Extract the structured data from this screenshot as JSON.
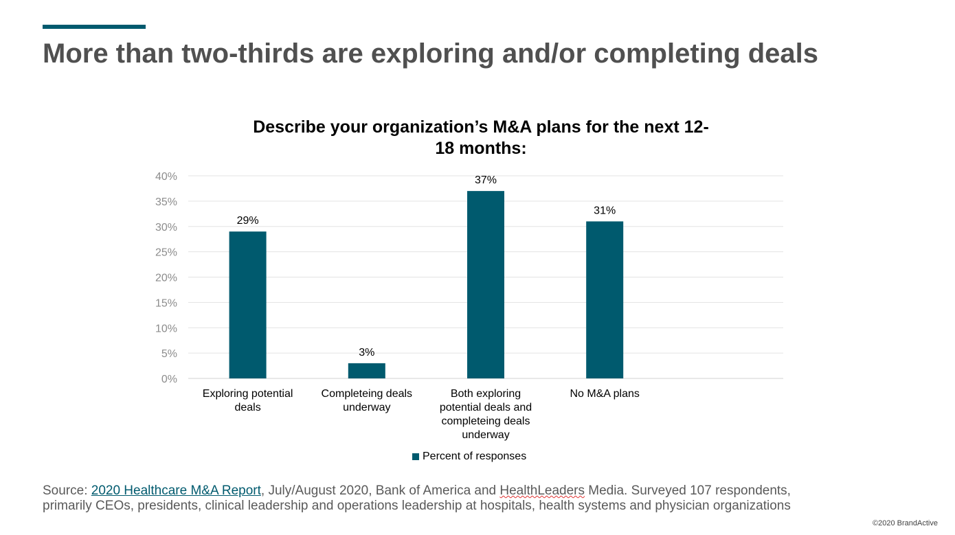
{
  "slide": {
    "title": "More than two-thirds are exploring and/or completing deals",
    "accent_color": "#005a6e",
    "source_prefix": "Source: ",
    "source_link": "2020 Healthcare M&A Report",
    "source_mid": ", July/August 2020, Bank of America and ",
    "source_flagged_word": "HealthLeaders",
    "source_rest": " Media. Surveyed 107 respondents,",
    "source_line2": "primarily CEOs, presidents, clinical leadership and operations leadership at hospitals, health systems and physician organizations",
    "copyright": "©2020 BrandActive"
  },
  "chart_data": {
    "type": "bar",
    "title": "Describe your organization’s M&A plans for the next 12-18 months:",
    "title_line1": "Describe your organization’s M&A plans for the next 12-",
    "title_line2": "18 months:",
    "categories": [
      [
        "Exploring potential",
        "deals"
      ],
      [
        "Completeing deals",
        "underway"
      ],
      [
        "Both exploring",
        "potential deals and",
        "completeing deals",
        "underway"
      ],
      [
        "No M&A plans"
      ]
    ],
    "series": [
      {
        "name": "Percent of responses",
        "values": [
          29,
          3,
          37,
          31
        ],
        "color": "#005a6e"
      }
    ],
    "data_labels": [
      "29%",
      "3%",
      "37%",
      "31%"
    ],
    "yticks": [
      "0%",
      "5%",
      "10%",
      "15%",
      "20%",
      "25%",
      "30%",
      "35%",
      "40%"
    ],
    "ylim": [
      0,
      40
    ],
    "grid": true,
    "legend_position": "bottom"
  }
}
